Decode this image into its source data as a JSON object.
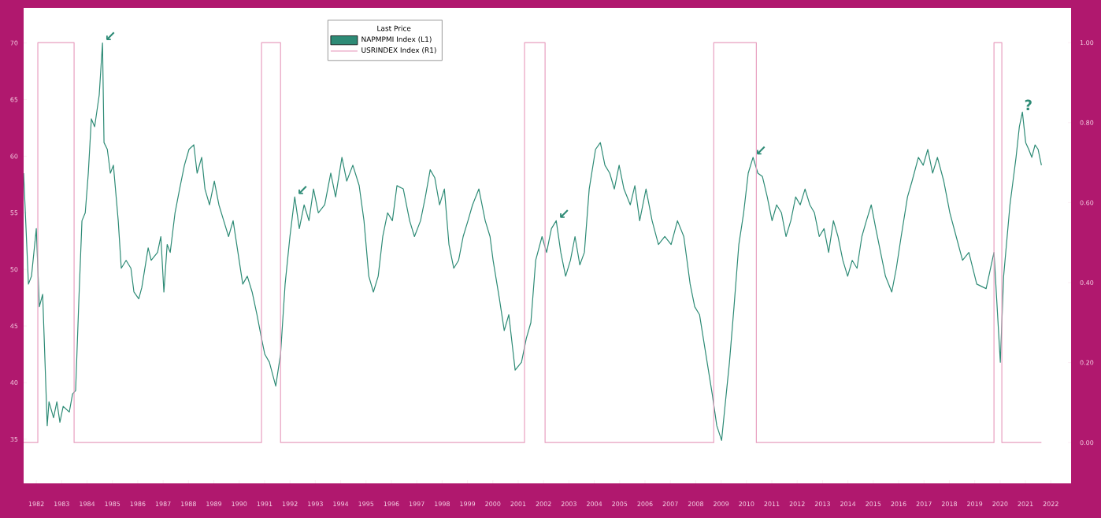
{
  "chart_data": {
    "type": "line",
    "legend_title": "Last Price",
    "legend": "top",
    "xlim": [
      1981.5,
      2022.8
    ],
    "ylim": [
      31.1,
      73.1
    ],
    "y2lim": [
      -0.102,
      1.087
    ],
    "xticks": [
      1982,
      1983,
      1984,
      1985,
      1986,
      1987,
      1988,
      1989,
      1990,
      1991,
      1992,
      1993,
      1994,
      1995,
      1996,
      1997,
      1998,
      1999,
      2000,
      2001,
      2002,
      2003,
      2004,
      2005,
      2006,
      2007,
      2008,
      2009,
      2010,
      2011,
      2012,
      2013,
      2014,
      2015,
      2016,
      2017,
      2018,
      2019,
      2020,
      2021,
      2022
    ],
    "yticks": [
      35,
      40,
      45,
      50,
      55,
      60,
      65,
      70
    ],
    "y2ticks": [
      {
        "value": 0,
        "label": "0.00"
      },
      {
        "value": 0.2,
        "label": "0.20"
      },
      {
        "value": 0.4,
        "label": "0.40"
      },
      {
        "value": 0.6,
        "label": "0.60"
      },
      {
        "value": 0.8,
        "label": "0.80"
      },
      {
        "value": 1,
        "label": "1.00"
      }
    ],
    "annotations": [
      {
        "text": "↙",
        "x": 1984.61,
        "y": 70.0
      },
      {
        "text": "↙",
        "x": 1992.19,
        "y": 56.4
      },
      {
        "text": "↙",
        "x": 2002.5,
        "y": 54.3
      },
      {
        "text": "↙",
        "x": 2010.26,
        "y": 59.9
      },
      {
        "text": "?",
        "x": 2020.88,
        "y": 63.9
      }
    ],
    "series": [
      {
        "name": "NAPMPMI Index (L1)",
        "color": "#2e8b76",
        "x": [
          1981.5,
          1981.69,
          1981.81,
          1982.0,
          1982.12,
          1982.25,
          1982.43,
          1982.5,
          1982.68,
          1982.81,
          1982.93,
          1983.06,
          1983.3,
          1983.43,
          1983.55,
          1983.68,
          1983.8,
          1983.93,
          1984.05,
          1984.17,
          1984.3,
          1984.48,
          1984.61,
          1984.67,
          1984.8,
          1984.92,
          1985.04,
          1985.23,
          1985.35,
          1985.54,
          1985.73,
          1985.85,
          1986.04,
          1986.16,
          1986.41,
          1986.53,
          1986.78,
          1986.91,
          1987.03,
          1987.16,
          1987.28,
          1987.47,
          1987.65,
          1987.84,
          1988.02,
          1988.21,
          1988.34,
          1988.52,
          1988.65,
          1988.83,
          1989.02,
          1989.2,
          1989.39,
          1989.58,
          1989.76,
          1989.95,
          1990.14,
          1990.32,
          1990.51,
          1990.7,
          1990.88,
          1991.01,
          1991.19,
          1991.44,
          1991.63,
          1991.81,
          1992.0,
          1992.19,
          1992.37,
          1992.56,
          1992.75,
          1992.93,
          1993.12,
          1993.37,
          1993.61,
          1993.8,
          1994.05,
          1994.24,
          1994.48,
          1994.73,
          1994.92,
          1995.11,
          1995.29,
          1995.48,
          1995.66,
          1995.85,
          1996.04,
          1996.22,
          1996.47,
          1996.72,
          1996.91,
          1997.15,
          1997.34,
          1997.53,
          1997.71,
          1997.9,
          1998.09,
          1998.27,
          1998.46,
          1998.65,
          1998.83,
          1999.02,
          1999.2,
          1999.45,
          1999.7,
          1999.89,
          2000.01,
          2000.26,
          2000.45,
          2000.63,
          2000.88,
          2001.13,
          2001.32,
          2001.5,
          2001.69,
          2001.94,
          2002.12,
          2002.31,
          2002.5,
          2002.68,
          2002.87,
          2003.06,
          2003.24,
          2003.43,
          2003.61,
          2003.8,
          2004.05,
          2004.24,
          2004.42,
          2004.61,
          2004.79,
          2004.98,
          2005.17,
          2005.42,
          2005.6,
          2005.79,
          2006.04,
          2006.28,
          2006.53,
          2006.78,
          2007.03,
          2007.28,
          2007.53,
          2007.78,
          2007.96,
          2008.15,
          2008.4,
          2008.65,
          2008.83,
          2009.02,
          2009.14,
          2009.33,
          2009.51,
          2009.7,
          2009.89,
          2010.07,
          2010.26,
          2010.45,
          2010.63,
          2010.82,
          2011.01,
          2011.19,
          2011.38,
          2011.56,
          2011.75,
          2011.94,
          2012.12,
          2012.31,
          2012.5,
          2012.68,
          2012.87,
          2013.06,
          2013.24,
          2013.43,
          2013.61,
          2013.8,
          2013.99,
          2014.17,
          2014.36,
          2014.55,
          2014.73,
          2014.92,
          2015.1,
          2015.29,
          2015.48,
          2015.73,
          2015.91,
          2016.1,
          2016.35,
          2016.53,
          2016.78,
          2016.97,
          2017.15,
          2017.34,
          2017.53,
          2017.78,
          2018.02,
          2018.27,
          2018.52,
          2018.77,
          2019.08,
          2019.45,
          2019.76,
          2020.01,
          2020.14,
          2020.39,
          2020.51,
          2020.63,
          2020.76,
          2020.88,
          2021.01,
          2021.13,
          2021.25,
          2021.38,
          2021.5,
          2021.63
        ],
        "values": [
          58.5,
          48.7,
          49.4,
          53.6,
          46.7,
          47.8,
          36.2,
          38.3,
          36.9,
          38.3,
          36.5,
          37.9,
          37.4,
          39.0,
          39.3,
          47.4,
          54.3,
          55.0,
          58.5,
          63.3,
          62.6,
          65.4,
          70.0,
          61.2,
          60.6,
          58.5,
          59.2,
          54.3,
          50.1,
          50.8,
          50.1,
          48.0,
          47.4,
          48.4,
          51.9,
          50.8,
          51.5,
          52.9,
          48.0,
          52.2,
          51.5,
          55.0,
          57.1,
          59.2,
          60.6,
          61.0,
          58.5,
          59.9,
          57.1,
          55.7,
          57.8,
          55.7,
          54.3,
          52.9,
          54.3,
          51.5,
          48.7,
          49.4,
          48.0,
          46.0,
          43.9,
          42.5,
          41.8,
          39.7,
          42.5,
          48.7,
          52.9,
          56.4,
          53.6,
          55.7,
          54.3,
          57.1,
          55.0,
          55.7,
          58.5,
          56.4,
          59.9,
          57.8,
          59.2,
          57.4,
          54.3,
          49.4,
          48.0,
          49.4,
          52.9,
          55.0,
          54.3,
          57.4,
          57.1,
          54.3,
          52.9,
          54.3,
          56.4,
          58.8,
          58.1,
          55.7,
          57.1,
          52.2,
          50.1,
          50.8,
          52.9,
          54.3,
          55.7,
          57.1,
          54.3,
          52.9,
          50.8,
          47.4,
          44.6,
          46.0,
          41.1,
          41.8,
          43.9,
          45.3,
          50.8,
          52.9,
          51.5,
          53.6,
          54.3,
          51.5,
          49.4,
          50.8,
          52.9,
          50.4,
          51.5,
          57.1,
          60.6,
          61.2,
          59.2,
          58.5,
          57.1,
          59.2,
          57.1,
          55.7,
          57.4,
          54.3,
          57.1,
          54.3,
          52.2,
          52.9,
          52.2,
          54.3,
          52.9,
          48.7,
          46.7,
          46.0,
          42.5,
          39.0,
          36.2,
          34.9,
          37.6,
          41.8,
          46.7,
          52.2,
          55.0,
          58.5,
          59.9,
          58.5,
          58.2,
          56.4,
          54.3,
          55.7,
          55.0,
          52.9,
          54.3,
          56.4,
          55.7,
          57.1,
          55.7,
          55.0,
          52.9,
          53.6,
          51.5,
          54.3,
          52.9,
          50.8,
          49.4,
          50.8,
          50.1,
          52.9,
          54.3,
          55.7,
          53.6,
          51.5,
          49.4,
          48.0,
          50.1,
          52.9,
          56.4,
          57.8,
          59.9,
          59.2,
          60.6,
          58.5,
          59.9,
          57.8,
          55.0,
          52.9,
          50.8,
          51.5,
          48.7,
          48.3,
          51.5,
          41.8,
          49.4,
          55.7,
          57.8,
          59.9,
          62.6,
          63.9,
          61.2,
          60.6,
          59.9,
          61.0,
          60.6,
          59.2
        ]
      },
      {
        "name": "USRINDEX Index (R1)",
        "type": "step",
        "axis": "y2",
        "color": "#e8a0c0",
        "x": [
          1981.5,
          1982.06,
          1983.49,
          1990.88,
          1991.63,
          2001.25,
          2002.06,
          2008.71,
          2010.39,
          2019.76,
          2020.07,
          2021.63
        ],
        "values": [
          0,
          1,
          0,
          1,
          0,
          1,
          0,
          1,
          0,
          1,
          0,
          0
        ]
      }
    ]
  }
}
